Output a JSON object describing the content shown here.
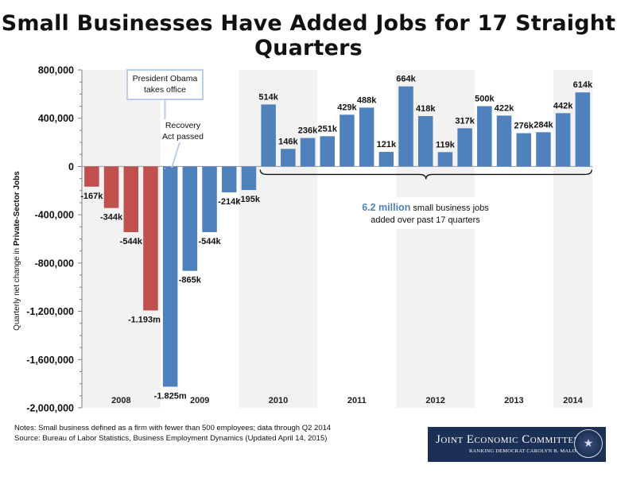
{
  "title": "Small Businesses Have Added Jobs for 17 Straight Quarters",
  "notes": {
    "line1": "Notes: Small business defined as a firm with fewer than 500 employees; data through Q2 2014",
    "line2": "Source: Bureau of Labor Statistics, Business Employment Dynamics (Updated April 14, 2015)"
  },
  "committee": {
    "name": "Joint Economic Committee",
    "subtitle": "RANKING DEMOCRAT CAROLYN B. MALONEY",
    "seal_icon": "congressional-seal-icon"
  },
  "colors": {
    "negative_bar": "#c0504d",
    "positive_bar": "#4f81bd",
    "year_band": "#f2f2f2",
    "annotation_blue": "#4f81bd"
  },
  "chart_data": {
    "type": "bar",
    "ylabel_prefix": "Quarterly net change in ",
    "ylabel_bold": "Private-Sector Jobs",
    "ylim": [
      -2000000,
      800000
    ],
    "yticks": [
      800000,
      400000,
      0,
      -400000,
      -800000,
      -1200000,
      -1600000,
      -2000000
    ],
    "ytick_labels": [
      "800,000",
      "400,000",
      "0",
      "-400,000",
      "-800,000",
      "-1,200,000",
      "-1,600,000",
      "-2,000,000"
    ],
    "grid": false,
    "years": [
      {
        "label": "2008",
        "quarters": 4
      },
      {
        "label": "2009",
        "quarters": 4
      },
      {
        "label": "2010",
        "quarters": 4
      },
      {
        "label": "2011",
        "quarters": 4
      },
      {
        "label": "2012",
        "quarters": 4
      },
      {
        "label": "2013",
        "quarters": 4
      },
      {
        "label": "2014",
        "quarters": 2
      }
    ],
    "values": [
      -167000,
      -344000,
      -544000,
      -1193000,
      -1825000,
      -865000,
      -544000,
      -214000,
      -195000,
      514000,
      146000,
      236000,
      251000,
      429000,
      488000,
      121000,
      664000,
      418000,
      119000,
      317000,
      500000,
      422000,
      276000,
      284000,
      442000,
      614000
    ],
    "labels": [
      "-167k",
      "-344k",
      "-544k",
      "-1.193m",
      "-1.825m",
      "-865k",
      "-544k",
      "-214k",
      "-195k",
      "514k",
      "146k",
      "236k",
      "251k",
      "429k",
      "488k",
      "121k",
      "664k",
      "418k",
      "119k",
      "317k",
      "500k",
      "422k",
      "276k",
      "284k",
      "442k",
      "614k"
    ],
    "colors": [
      "red",
      "red",
      "red",
      "red",
      "blue",
      "blue",
      "blue",
      "blue",
      "blue",
      "blue",
      "blue",
      "blue",
      "blue",
      "blue",
      "blue",
      "blue",
      "blue",
      "blue",
      "blue",
      "blue",
      "blue",
      "blue",
      "blue",
      "blue",
      "blue",
      "blue"
    ],
    "annotations": {
      "obama_line1": "President Obama",
      "obama_line2": "takes office",
      "recovery_line1": "Recovery",
      "recovery_line2": "Act passed",
      "jobs_highlight": "6.2 million",
      "jobs_rest": " small business jobs",
      "jobs_line2": "added over past 17 quarters"
    }
  }
}
